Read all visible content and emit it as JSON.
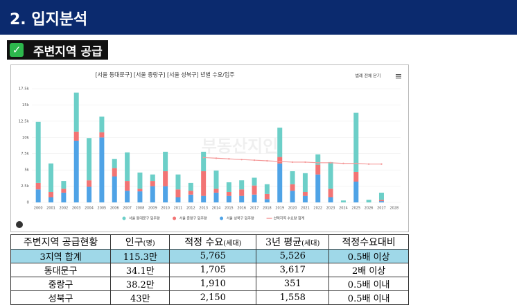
{
  "header": {
    "title": "2. 입지분석"
  },
  "section": {
    "title": "주변지역 공급"
  },
  "chart_data": {
    "type": "bar",
    "stacked": true,
    "title": "[서울 동대문구] [서울 중랑구] [서울 성북구] 년별 수요/입주",
    "legend_control": "범례 전체 닫기",
    "watermark": "부동산지인",
    "categories": [
      "2000",
      "2001",
      "2002",
      "2003",
      "2004",
      "2005",
      "2006",
      "2007",
      "2008",
      "2009",
      "2010",
      "2011",
      "2012",
      "2013",
      "2014",
      "2015",
      "2016",
      "2017",
      "2018",
      "2019",
      "2020",
      "2021",
      "2022",
      "2023",
      "2024",
      "2025",
      "2026",
      "2027",
      "2028"
    ],
    "series": [
      {
        "name": "서울 동대문구 입주량",
        "color": "#6ccfc8",
        "values": [
          9400,
          4400,
          1200,
          6000,
          6500,
          2400,
          1400,
          4400,
          2500,
          1000,
          3000,
          2300,
          1200,
          3000,
          2800,
          1500,
          1400,
          1200,
          1500,
          4500,
          2000,
          2900,
          1600,
          4100,
          300,
          9100,
          400,
          1100,
          0
        ]
      },
      {
        "name": "서울 중랑구 입주량",
        "color": "#f27474",
        "values": [
          1000,
          800,
          600,
          1400,
          1000,
          800,
          1300,
          1500,
          400,
          800,
          2300,
          1200,
          600,
          3800,
          600,
          600,
          1000,
          1400,
          800,
          1000,
          1000,
          600,
          1500,
          1300,
          0,
          1500,
          0,
          200,
          0
        ]
      },
      {
        "name": "서울 성북구 입주량",
        "color": "#4fa3e6",
        "values": [
          2000,
          800,
          1500,
          9500,
          2400,
          10000,
          4000,
          1800,
          1700,
          2500,
          2500,
          800,
          1200,
          1000,
          1500,
          1000,
          1000,
          1200,
          500,
          6000,
          1800,
          1000,
          4300,
          800,
          0,
          3200,
          0,
          200,
          0
        ]
      },
      {
        "name": "선택지역 수요량 합계",
        "type": "line",
        "color": "#f59a9a",
        "values": [
          null,
          null,
          null,
          null,
          null,
          null,
          null,
          null,
          null,
          null,
          null,
          null,
          null,
          6900,
          6800,
          6700,
          6600,
          6500,
          6400,
          6300,
          6200,
          6200,
          6100,
          6100,
          6000,
          6000,
          5900,
          5900,
          null
        ]
      }
    ],
    "ylim": [
      0,
      17500
    ],
    "yticks": [
      0,
      {
        "value": 2500,
        "label": "2.5k"
      },
      {
        "value": 5000,
        "label": "5k"
      },
      {
        "value": 7500,
        "label": "7.5k"
      },
      {
        "value": 10000,
        "label": "10k"
      },
      {
        "value": 12500,
        "label": "12.5k"
      },
      {
        "value": 15000,
        "label": "15k"
      },
      {
        "value": 17500,
        "label": "17.5k"
      }
    ],
    "grid": true
  },
  "table": {
    "header": [
      {
        "text": "주변지역 공급현황",
        "unit": ""
      },
      {
        "text": "인구",
        "unit": "(명)"
      },
      {
        "text": "적정 수요",
        "unit": "(세대)"
      },
      {
        "text": "3년 평균",
        "unit": "(세대)"
      },
      {
        "text": "적정수요대비",
        "unit": ""
      }
    ],
    "rows": [
      [
        "3지역 합계",
        "115.3만",
        "5,765",
        "5,526",
        "0.5배 이상"
      ],
      [
        "동대문구",
        "34.1만",
        "1,705",
        "3,617",
        "2배 이상"
      ],
      [
        "중랑구",
        "38.2만",
        "1,910",
        "351",
        "0.5배 이내"
      ],
      [
        "성북구",
        "43만",
        "2,150",
        "1,558",
        "0.5배 이내"
      ]
    ]
  }
}
